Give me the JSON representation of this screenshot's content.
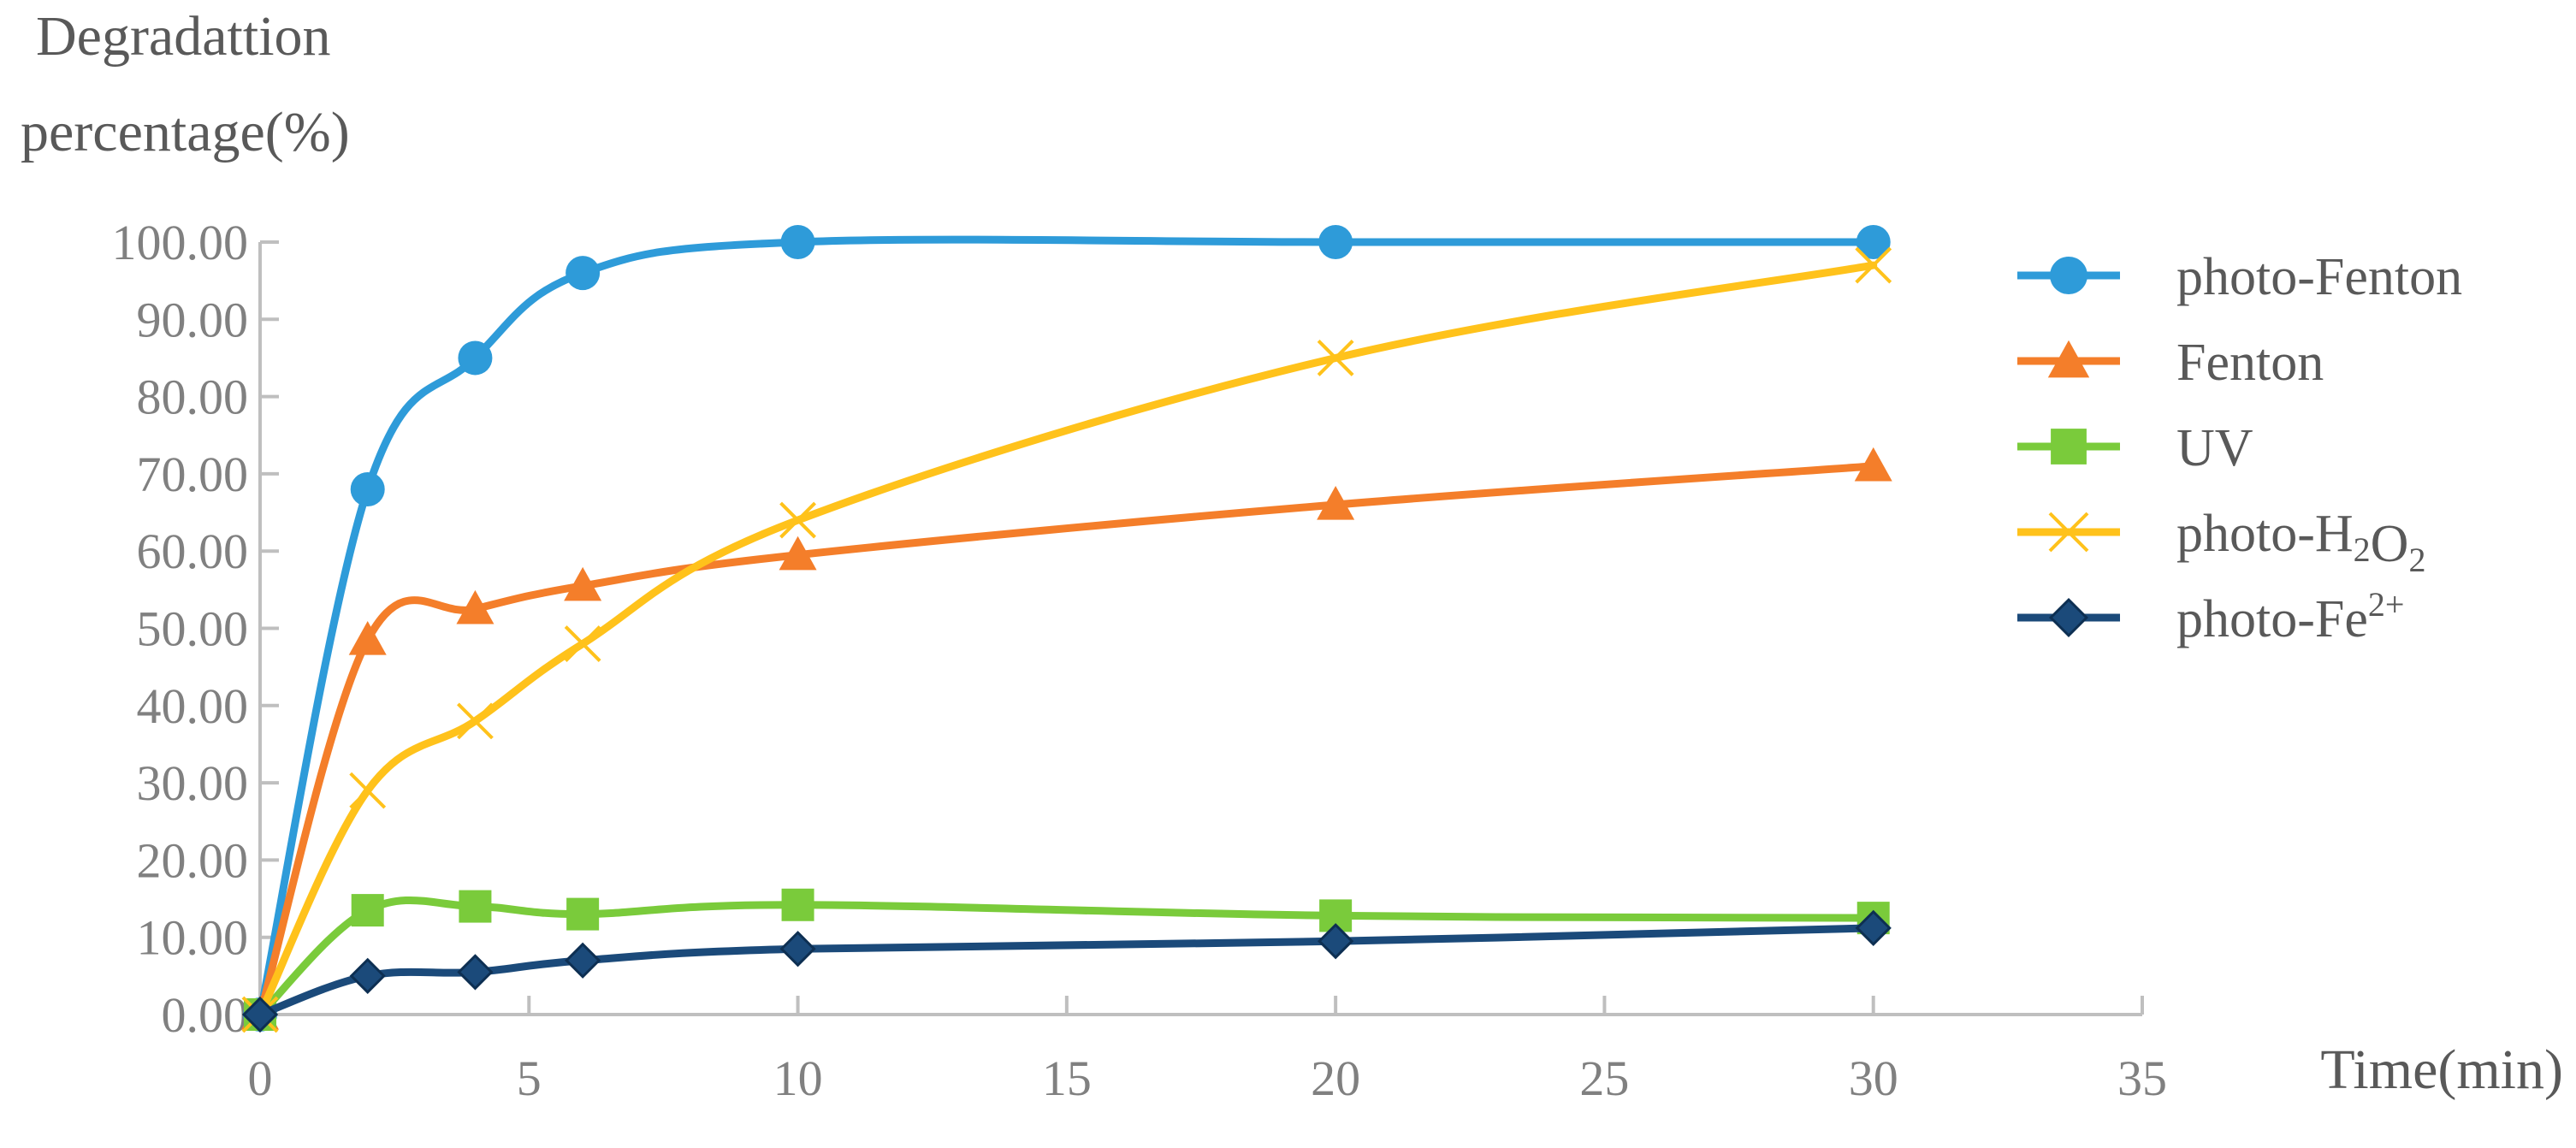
{
  "chart_data": {
    "type": "line",
    "title": "",
    "ylabel_lines": [
      "Degradattion",
      "percentage(%)"
    ],
    "xlabel": "Time(min)",
    "xlim": [
      0,
      35
    ],
    "ylim": [
      0,
      100
    ],
    "xticks": [
      0,
      5,
      10,
      15,
      20,
      25,
      30,
      35
    ],
    "xtick_labels": [
      "0",
      "5",
      "10",
      "15",
      "20",
      "25",
      "30",
      "35"
    ],
    "yticks": [
      0,
      10,
      20,
      30,
      40,
      50,
      60,
      70,
      80,
      90,
      100
    ],
    "ytick_labels": [
      "0.00",
      "10.00",
      "20.00",
      "30.00",
      "40.00",
      "50.00",
      "60.00",
      "70.00",
      "80.00",
      "90.00",
      "100.00"
    ],
    "grid": false,
    "legend_position": "right",
    "x": [
      0,
      2,
      4,
      6,
      10,
      20,
      30
    ],
    "series": [
      {
        "name": "photo-Fenton",
        "legend_parts": [
          {
            "t": "photo-Fenton",
            "s": ""
          }
        ],
        "color": "#2E9BD9",
        "marker": "circle",
        "values": [
          0,
          68,
          85,
          96,
          100,
          100,
          100
        ]
      },
      {
        "name": "Fenton",
        "legend_parts": [
          {
            "t": "Fenton",
            "s": ""
          }
        ],
        "color": "#F47E2A",
        "marker": "triangle",
        "values": [
          0,
          48.5,
          52.5,
          55.5,
          59.5,
          66,
          71
        ]
      },
      {
        "name": "UV",
        "legend_parts": [
          {
            "t": "UV",
            "s": ""
          }
        ],
        "color": "#7ACB3B",
        "marker": "square",
        "values": [
          0,
          13.5,
          14,
          13,
          14.2,
          12.8,
          12.5
        ]
      },
      {
        "name": "photo-H2O2",
        "legend_parts": [
          {
            "t": "photo-H",
            "s": ""
          },
          {
            "t": "2",
            "s": "sub"
          },
          {
            "t": "O",
            "s": ""
          },
          {
            "t": "2",
            "s": "sub"
          }
        ],
        "color": "#FFC21B",
        "marker": "x",
        "values": [
          0,
          29,
          38,
          48,
          64,
          85,
          97
        ]
      },
      {
        "name": "photo-Fe2+",
        "legend_parts": [
          {
            "t": "photo-Fe",
            "s": ""
          },
          {
            "t": "2+",
            "s": "sup"
          }
        ],
        "color": "#1B4A7A",
        "marker": "diamond",
        "values": [
          0,
          5,
          5.5,
          7,
          8.5,
          9.5,
          11.2
        ]
      }
    ]
  }
}
